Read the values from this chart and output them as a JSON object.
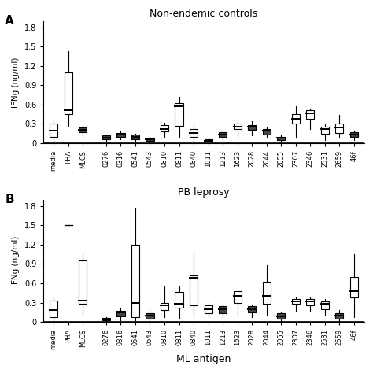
{
  "panel_A_title": "Non-endemic controls",
  "panel_B_title": "PB leprosy",
  "xlabel": "ML antigen",
  "ylabel": "IFNg (ng/ml)",
  "categories": [
    "media",
    "PHA",
    "MLCS",
    "0276",
    "0316",
    "0541",
    "0543",
    "0810",
    "0811",
    "0840",
    "1011",
    "1213",
    "1623",
    "2028",
    "2044",
    "2055",
    "2307",
    "2346",
    "2531",
    "2659",
    "46f"
  ],
  "panel_A": {
    "boxes": [
      {
        "q1": 0.1,
        "median": 0.2,
        "q3": 0.3,
        "whislo": 0.0,
        "whishi": 0.37,
        "filled": false
      },
      {
        "q1": 0.45,
        "median": 0.52,
        "q3": 1.1,
        "whislo": 0.27,
        "whishi": 1.43,
        "filled": false
      },
      {
        "q1": 0.17,
        "median": 0.21,
        "q3": 0.24,
        "whislo": 0.1,
        "whishi": 0.28,
        "filled": true
      },
      {
        "q1": 0.06,
        "median": 0.09,
        "q3": 0.12,
        "whislo": 0.03,
        "whishi": 0.14,
        "filled": true
      },
      {
        "q1": 0.1,
        "median": 0.14,
        "q3": 0.16,
        "whislo": 0.06,
        "whishi": 0.2,
        "filled": true
      },
      {
        "q1": 0.06,
        "median": 0.1,
        "q3": 0.13,
        "whislo": 0.02,
        "whishi": 0.15,
        "filled": true
      },
      {
        "q1": 0.04,
        "median": 0.06,
        "q3": 0.08,
        "whislo": 0.01,
        "whishi": 0.1,
        "filled": true
      },
      {
        "q1": 0.18,
        "median": 0.22,
        "q3": 0.28,
        "whislo": 0.1,
        "whishi": 0.32,
        "filled": false
      },
      {
        "q1": 0.27,
        "median": 0.58,
        "q3": 0.62,
        "whislo": 0.1,
        "whishi": 0.72,
        "filled": false
      },
      {
        "q1": 0.1,
        "median": 0.16,
        "q3": 0.22,
        "whislo": 0.03,
        "whishi": 0.28,
        "filled": false
      },
      {
        "q1": 0.02,
        "median": 0.04,
        "q3": 0.06,
        "whislo": 0.0,
        "whishi": 0.08,
        "filled": false
      },
      {
        "q1": 0.1,
        "median": 0.14,
        "q3": 0.17,
        "whislo": 0.05,
        "whishi": 0.2,
        "filled": true
      },
      {
        "q1": 0.22,
        "median": 0.26,
        "q3": 0.3,
        "whislo": 0.1,
        "whishi": 0.38,
        "filled": false
      },
      {
        "q1": 0.21,
        "median": 0.26,
        "q3": 0.28,
        "whislo": 0.12,
        "whishi": 0.34,
        "filled": true
      },
      {
        "q1": 0.14,
        "median": 0.19,
        "q3": 0.22,
        "whislo": 0.08,
        "whishi": 0.26,
        "filled": true
      },
      {
        "q1": 0.05,
        "median": 0.08,
        "q3": 0.1,
        "whislo": 0.02,
        "whishi": 0.13,
        "filled": true
      },
      {
        "q1": 0.3,
        "median": 0.38,
        "q3": 0.45,
        "whislo": 0.08,
        "whishi": 0.58,
        "filled": false
      },
      {
        "q1": 0.38,
        "median": 0.46,
        "q3": 0.52,
        "whislo": 0.22,
        "whishi": 0.54,
        "filled": false
      },
      {
        "q1": 0.15,
        "median": 0.22,
        "q3": 0.26,
        "whislo": 0.05,
        "whishi": 0.3,
        "filled": false
      },
      {
        "q1": 0.16,
        "median": 0.24,
        "q3": 0.3,
        "whislo": 0.08,
        "whishi": 0.44,
        "filled": false
      },
      {
        "q1": 0.1,
        "median": 0.13,
        "q3": 0.17,
        "whislo": 0.05,
        "whishi": 0.2,
        "filled": true
      }
    ]
  },
  "panel_B": {
    "boxes": [
      {
        "q1": 0.08,
        "median": 0.18,
        "q3": 0.33,
        "whislo": 0.0,
        "whishi": 0.38,
        "filled": false
      },
      {
        "hline_only": true,
        "hline_y": 1.5
      },
      {
        "q1": 0.28,
        "median": 0.33,
        "q3": 0.96,
        "whislo": 0.1,
        "whishi": 1.05,
        "filled": false
      },
      {
        "q1": 0.02,
        "median": 0.04,
        "q3": 0.06,
        "whislo": 0.0,
        "whishi": 0.08,
        "filled": true
      },
      {
        "q1": 0.09,
        "median": 0.15,
        "q3": 0.17,
        "whislo": 0.03,
        "whishi": 0.21,
        "filled": true
      },
      {
        "q1": 0.07,
        "median": 0.3,
        "q3": 1.2,
        "whislo": 0.02,
        "whishi": 1.78,
        "filled": false
      },
      {
        "q1": 0.05,
        "median": 0.1,
        "q3": 0.14,
        "whislo": 0.02,
        "whishi": 0.18,
        "filled": true
      },
      {
        "q1": 0.18,
        "median": 0.26,
        "q3": 0.3,
        "whislo": 0.08,
        "whishi": 0.56,
        "filled": false
      },
      {
        "q1": 0.22,
        "median": 0.28,
        "q3": 0.46,
        "whislo": 0.05,
        "whishi": 0.56,
        "filled": false
      },
      {
        "q1": 0.26,
        "median": 0.68,
        "q3": 0.72,
        "whislo": 0.08,
        "whishi": 1.06,
        "filled": false
      },
      {
        "q1": 0.14,
        "median": 0.2,
        "q3": 0.26,
        "whislo": 0.08,
        "whishi": 0.3,
        "filled": false
      },
      {
        "q1": 0.14,
        "median": 0.2,
        "q3": 0.24,
        "whislo": 0.05,
        "whishi": 0.26,
        "filled": true
      },
      {
        "q1": 0.3,
        "median": 0.4,
        "q3": 0.48,
        "whislo": 0.1,
        "whishi": 0.5,
        "filled": false
      },
      {
        "q1": 0.15,
        "median": 0.2,
        "q3": 0.24,
        "whislo": 0.08,
        "whishi": 0.26,
        "filled": true
      },
      {
        "q1": 0.28,
        "median": 0.4,
        "q3": 0.62,
        "whislo": 0.1,
        "whishi": 0.88,
        "filled": false
      },
      {
        "q1": 0.05,
        "median": 0.09,
        "q3": 0.13,
        "whislo": 0.01,
        "whishi": 0.15,
        "filled": true
      },
      {
        "q1": 0.28,
        "median": 0.32,
        "q3": 0.36,
        "whislo": 0.16,
        "whishi": 0.38,
        "filled": false
      },
      {
        "q1": 0.26,
        "median": 0.32,
        "q3": 0.36,
        "whislo": 0.16,
        "whishi": 0.38,
        "filled": false
      },
      {
        "q1": 0.2,
        "median": 0.28,
        "q3": 0.32,
        "whislo": 0.1,
        "whishi": 0.35,
        "filled": false
      },
      {
        "q1": 0.05,
        "median": 0.1,
        "q3": 0.14,
        "whislo": 0.01,
        "whishi": 0.18,
        "filled": true
      },
      {
        "q1": 0.38,
        "median": 0.48,
        "q3": 0.7,
        "whislo": 0.08,
        "whishi": 1.05,
        "filled": false
      }
    ]
  },
  "ylim": [
    0.0,
    1.9
  ],
  "yticks": [
    0.0,
    0.3,
    0.6,
    0.9,
    1.2,
    1.5,
    1.8
  ],
  "background_color": "#ffffff",
  "box_color_light": "#ffffff",
  "box_color_dark": "#444444",
  "linewidth": 0.8
}
